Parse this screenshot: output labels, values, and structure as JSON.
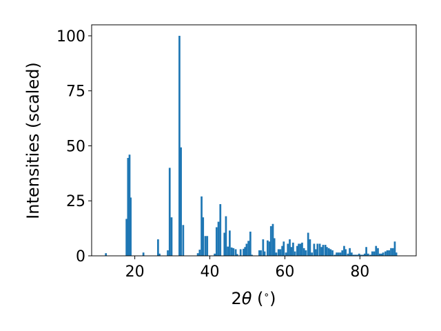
{
  "chart_data": {
    "type": "bar",
    "xlabel": "2θ (°)",
    "ylabel": "Intensities (scaled)",
    "xlim": [
      8.5,
      95.0
    ],
    "ylim": [
      0,
      105
    ],
    "xticks": [
      20,
      40,
      60,
      80
    ],
    "yticks": [
      0,
      25,
      50,
      75,
      100
    ],
    "bar_width_deg": 0.5,
    "bar_color": "#1f77b4",
    "grid": false,
    "legend": "none",
    "x": [
      12.3,
      17.8,
      18.2,
      18.6,
      18.9,
      22.3,
      26.2,
      26.6,
      28.8,
      29.3,
      29.8,
      31.9,
      32.3,
      32.9,
      36.8,
      37.3,
      37.8,
      38.2,
      38.8,
      39.3,
      41.3,
      41.8,
      42.3,
      42.8,
      43.9,
      44.3,
      44.8,
      45.3,
      45.8,
      46.3,
      46.9,
      47.3,
      48.2,
      49.0,
      49.4,
      49.8,
      50.3,
      50.8,
      51.2,
      53.2,
      53.6,
      54.2,
      54.6,
      55.4,
      55.9,
      56.3,
      56.8,
      57.2,
      57.7,
      58.3,
      58.8,
      59.3,
      59.7,
      60.3,
      60.8,
      61.3,
      61.7,
      62.2,
      62.7,
      63.3,
      63.7,
      64.2,
      64.6,
      65.1,
      65.6,
      66.2,
      66.7,
      67.2,
      67.8,
      68.2,
      68.7,
      69.3,
      69.8,
      70.2,
      70.8,
      71.2,
      71.7,
      72.2,
      72.7,
      73.3,
      73.8,
      74.3,
      74.8,
      75.3,
      75.8,
      76.2,
      76.8,
      77.3,
      77.8,
      78.3,
      78.8,
      79.3,
      79.8,
      80.3,
      80.8,
      81.3,
      81.7,
      82.2,
      82.8,
      83.3,
      83.8,
      84.3,
      84.8,
      85.3,
      85.8,
      86.2,
      86.8,
      87.3,
      87.8,
      88.3,
      88.8,
      89.3,
      89.7
    ],
    "values": [
      1.2,
      16.8,
      44.5,
      46.0,
      26.5,
      1.5,
      7.5,
      1.0,
      2.5,
      40.0,
      17.5,
      100.0,
      49.3,
      14.0,
      1.2,
      2.8,
      27.0,
      17.5,
      9.0,
      9.0,
      1.0,
      13.0,
      15.5,
      23.5,
      10.5,
      18.0,
      4.2,
      11.5,
      3.8,
      3.5,
      3.0,
      0.8,
      3.0,
      3.2,
      4.0,
      5.5,
      6.8,
      11.0,
      0.5,
      2.5,
      2.5,
      7.5,
      2.0,
      7.0,
      6.5,
      13.5,
      14.5,
      8.0,
      1.5,
      3.0,
      3.0,
      4.5,
      6.5,
      1.5,
      5.5,
      7.5,
      4.0,
      6.0,
      2.0,
      4.5,
      5.5,
      5.5,
      6.0,
      3.5,
      2.5,
      10.5,
      7.5,
      1.5,
      5.5,
      3.0,
      5.5,
      5.5,
      4.0,
      5.0,
      5.0,
      4.0,
      3.5,
      3.0,
      2.5,
      0.5,
      1.5,
      1.5,
      1.5,
      2.5,
      4.5,
      3.0,
      1.0,
      3.5,
      1.5,
      0.5,
      0.5,
      0.5,
      1.0,
      0.5,
      0.5,
      1.0,
      4.0,
      1.0,
      0.5,
      2.0,
      2.0,
      4.5,
      3.5,
      1.0,
      1.0,
      1.5,
      2.0,
      2.5,
      2.5,
      3.5,
      3.5,
      6.5,
      1.5
    ]
  }
}
